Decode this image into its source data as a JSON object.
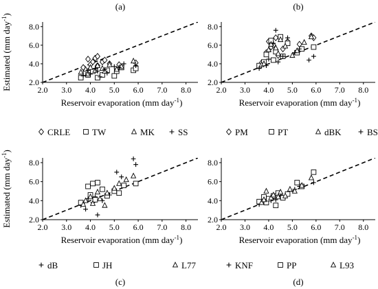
{
  "chart_data": [
    {
      "panel": "(a)",
      "type": "scatter",
      "xlabel": "Reservoir evaporation (mm day",
      "xlabel_sup": "-1",
      "xlabel_tail": ")",
      "ylabel": "Estimated  (mm day",
      "ylabel_sup": "-1",
      "ylabel_tail": ")",
      "xlim": [
        2.0,
        8.5
      ],
      "ylim": [
        2.0,
        8.5
      ],
      "xticks": [
        "2.0",
        "3.0",
        "4.0",
        "5.0",
        "6.0",
        "7.0",
        "8.0"
      ],
      "yticks": [
        "2.0",
        "4.0",
        "6.0",
        "8.0"
      ],
      "one_to_one_line": true,
      "legend_position": "below",
      "series": [
        {
          "name": "CRLE",
          "marker": "diamond",
          "x": [
            3.7,
            3.9,
            4.0,
            4.1,
            4.2,
            4.3,
            4.3,
            4.5,
            4.6,
            4.8,
            5.2,
            5.9
          ],
          "y": [
            3.6,
            4.5,
            3.9,
            4.2,
            4.6,
            4.8,
            3.8,
            4.2,
            4.4,
            4.0,
            3.9,
            4.1
          ]
        },
        {
          "name": "TW",
          "marker": "square",
          "x": [
            3.6,
            3.8,
            3.9,
            4.1,
            4.3,
            4.5,
            4.7,
            5.0,
            5.1,
            5.3,
            5.8,
            5.9
          ],
          "y": [
            2.5,
            3.0,
            2.8,
            3.2,
            2.5,
            2.8,
            3.3,
            2.7,
            3.2,
            3.6,
            3.3,
            3.5
          ]
        },
        {
          "name": "MK",
          "marker": "triangle",
          "x": [
            3.6,
            3.8,
            3.9,
            4.0,
            4.2,
            4.3,
            4.5,
            4.6,
            4.8,
            5.1,
            5.3,
            5.8
          ],
          "y": [
            3.1,
            3.4,
            2.9,
            3.6,
            3.3,
            3.8,
            3.5,
            3.2,
            3.9,
            3.4,
            3.7,
            4.3
          ]
        },
        {
          "name": "SS",
          "marker": "plus",
          "x": [
            3.7,
            3.9,
            4.0,
            4.2,
            4.3,
            4.4,
            4.6,
            4.7,
            5.0,
            5.2,
            5.4,
            5.9
          ],
          "y": [
            2.7,
            3.3,
            2.9,
            3.5,
            3.2,
            2.6,
            3.4,
            3.0,
            3.7,
            3.6,
            4.0,
            3.8
          ]
        }
      ]
    },
    {
      "panel": "(b)",
      "type": "scatter",
      "xlabel": "Reservoir evaporation (mm day",
      "xlabel_sup": "-1",
      "xlabel_tail": ")",
      "ylabel": "",
      "ylabel_sup": "",
      "ylabel_tail": "",
      "xlim": [
        2.0,
        8.5
      ],
      "ylim": [
        2.0,
        8.5
      ],
      "xticks": [
        "2.0",
        "3.0",
        "4.0",
        "5.0",
        "6.0",
        "7.0",
        "8.0"
      ],
      "yticks": [
        "2.0",
        "4.0",
        "6.0",
        "8.0"
      ],
      "one_to_one_line": true,
      "legend_position": "below",
      "series": [
        {
          "name": "PM",
          "marker": "diamond",
          "x": [
            3.7,
            3.9,
            4.0,
            4.1,
            4.2,
            4.3,
            4.4,
            4.6,
            4.8,
            5.3,
            5.8,
            5.9
          ],
          "y": [
            4.1,
            5.2,
            6.4,
            5.8,
            6.0,
            6.8,
            4.9,
            5.6,
            6.4,
            6.1,
            7.0,
            6.8
          ]
        },
        {
          "name": "PT",
          "marker": "square",
          "x": [
            3.6,
            3.8,
            3.9,
            4.1,
            4.2,
            4.3,
            4.5,
            4.6,
            4.8,
            5.2,
            5.4,
            5.9
          ],
          "y": [
            3.8,
            4.2,
            5.0,
            6.5,
            4.4,
            5.3,
            6.9,
            4.8,
            6.2,
            5.2,
            5.6,
            5.8
          ]
        },
        {
          "name": "dBK",
          "marker": "triangle",
          "x": [
            3.7,
            3.8,
            4.0,
            4.1,
            4.3,
            4.4,
            4.5,
            4.7,
            5.0,
            5.2,
            5.5,
            5.8
          ],
          "y": [
            3.9,
            4.0,
            5.5,
            6.1,
            5.7,
            5.1,
            6.6,
            5.9,
            4.9,
            5.4,
            6.3,
            6.9
          ]
        },
        {
          "name": "BS",
          "marker": "plus",
          "x": [
            3.6,
            3.9,
            4.0,
            4.2,
            4.3,
            4.4,
            4.6,
            4.8,
            5.1,
            5.3,
            5.7,
            5.9
          ],
          "y": [
            3.5,
            3.8,
            4.5,
            6.2,
            7.6,
            4.2,
            4.8,
            6.8,
            5.2,
            5.6,
            4.4,
            4.8
          ]
        }
      ]
    },
    {
      "panel": "(c)",
      "type": "scatter",
      "xlabel": "Reservoir evaporation (mm day",
      "xlabel_sup": "-1",
      "xlabel_tail": ")",
      "ylabel": "Estimated  (mm day",
      "ylabel_sup": "-1",
      "ylabel_tail": ")",
      "xlim": [
        2.0,
        8.5
      ],
      "ylim": [
        2.0,
        8.5
      ],
      "xticks": [
        "2.0",
        "3.0",
        "4.0",
        "5.0",
        "6.0",
        "7.0",
        "8.0"
      ],
      "yticks": [
        "2.0",
        "4.0",
        "6.0",
        "8.0"
      ],
      "one_to_one_line": true,
      "legend_position": "below",
      "series": [
        {
          "name": "dB",
          "marker": "plus",
          "x": [
            3.6,
            3.8,
            3.9,
            4.1,
            4.2,
            4.3,
            4.5,
            4.8,
            5.1,
            5.3,
            5.8,
            5.9
          ],
          "y": [
            3.5,
            3.1,
            4.2,
            3.8,
            4.4,
            2.5,
            4.0,
            4.6,
            7.0,
            6.5,
            8.4,
            7.8
          ]
        },
        {
          "name": "JH",
          "marker": "square",
          "x": [
            3.6,
            3.9,
            4.0,
            4.1,
            4.2,
            4.3,
            4.5,
            4.7,
            5.0,
            5.2,
            5.4,
            5.9
          ],
          "y": [
            3.8,
            5.5,
            4.6,
            5.8,
            4.1,
            5.9,
            5.2,
            4.5,
            5.0,
            4.8,
            5.6,
            5.8
          ]
        },
        {
          "name": "L77",
          "marker": "triangle",
          "x": [
            3.7,
            3.8,
            4.0,
            4.1,
            4.3,
            4.4,
            4.6,
            4.7,
            5.0,
            5.2,
            5.5,
            5.8
          ],
          "y": [
            3.6,
            4.0,
            4.4,
            3.7,
            4.9,
            4.2,
            3.5,
            4.8,
            5.3,
            5.8,
            6.2,
            6.6
          ]
        }
      ]
    },
    {
      "panel": "(d)",
      "type": "scatter",
      "xlabel": "Reservoir evaporation (mm day",
      "xlabel_sup": "-1",
      "xlabel_tail": ")",
      "ylabel": "",
      "ylabel_sup": "",
      "ylabel_tail": "",
      "xlim": [
        2.0,
        8.5
      ],
      "ylim": [
        2.0,
        8.5
      ],
      "xticks": [
        "2.0",
        "3.0",
        "4.0",
        "5.0",
        "6.0",
        "7.0",
        "8.0"
      ],
      "yticks": [
        "2.0",
        "4.0",
        "6.0",
        "8.0"
      ],
      "one_to_one_line": true,
      "legend_position": "below",
      "series": [
        {
          "name": "KNF",
          "marker": "plus",
          "x": [
            3.6,
            3.8,
            3.9,
            4.1,
            4.2,
            4.3,
            4.5,
            4.6,
            4.8,
            5.1,
            5.3,
            5.9
          ],
          "y": [
            3.6,
            3.9,
            4.2,
            4.0,
            4.4,
            4.1,
            4.6,
            4.3,
            4.8,
            5.2,
            5.5,
            5.9
          ]
        },
        {
          "name": "PP",
          "marker": "square",
          "x": [
            3.6,
            3.8,
            3.9,
            4.0,
            4.2,
            4.3,
            4.4,
            4.6,
            4.8,
            5.2,
            5.4,
            5.9
          ],
          "y": [
            3.9,
            4.4,
            3.8,
            4.2,
            4.5,
            3.5,
            4.8,
            4.3,
            4.7,
            5.9,
            5.5,
            7.0
          ]
        },
        {
          "name": "L93",
          "marker": "triangle",
          "x": [
            3.7,
            3.8,
            3.9,
            4.1,
            4.2,
            4.4,
            4.5,
            4.7,
            4.9,
            5.1,
            5.4,
            5.8
          ],
          "y": [
            3.8,
            4.1,
            5.0,
            4.3,
            4.6,
            4.4,
            4.9,
            4.5,
            5.2,
            5.0,
            5.6,
            6.4
          ]
        }
      ]
    }
  ]
}
